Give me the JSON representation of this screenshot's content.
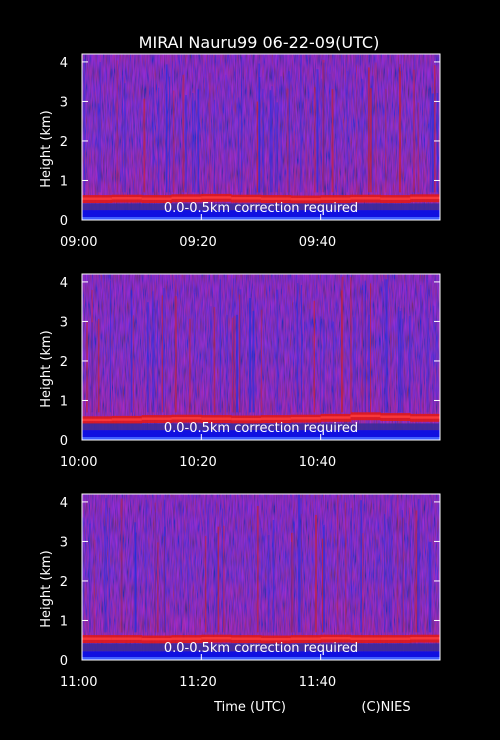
{
  "title": "MIRAI Nauru99 06-22-09(UTC)",
  "xlabel": "Time (UTC)",
  "credit": "(C)NIES",
  "ylabel": "Height (km)",
  "note": "0.0-0.5km correction required",
  "colors": {
    "background": "#000000",
    "low": "#1a1acc",
    "mid": "#7a1a9a",
    "high": "#e01818",
    "peak": "#ffd0d0"
  },
  "chart_data": [
    {
      "type": "heatmap",
      "ylabel": "Height (km)",
      "ylim": [
        0,
        4.2
      ],
      "yticks": [
        0,
        1,
        2,
        3,
        4
      ],
      "xlim": [
        "09:00",
        "10:00"
      ],
      "xticks": [
        "09:00",
        "09:20",
        "09:40"
      ],
      "annotation": "0.0-0.5km correction required",
      "boundary_layer_height_km": [
        0.55,
        0.56,
        0.55,
        0.57,
        0.58,
        0.56,
        0.55,
        0.54,
        0.55,
        0.56,
        0.55,
        0.57
      ],
      "surface_layer_top_km": 0.25
    },
    {
      "type": "heatmap",
      "ylabel": "Height (km)",
      "ylim": [
        0,
        4.2
      ],
      "yticks": [
        0,
        1,
        2,
        3,
        4
      ],
      "xlim": [
        "10:00",
        "11:00"
      ],
      "xticks": [
        "10:00",
        "10:20",
        "10:40"
      ],
      "annotation": "0.0-0.5km correction required",
      "boundary_layer_height_km": [
        0.52,
        0.53,
        0.55,
        0.56,
        0.55,
        0.54,
        0.55,
        0.56,
        0.58,
        0.62,
        0.6,
        0.58
      ],
      "surface_layer_top_km": 0.25
    },
    {
      "type": "heatmap",
      "ylabel": "Height (km)",
      "ylim": [
        0,
        4.2
      ],
      "yticks": [
        0,
        1,
        2,
        3,
        4
      ],
      "xlim": [
        "11:00",
        "12:00"
      ],
      "xticks": [
        "11:00",
        "11:20",
        "11:40"
      ],
      "annotation": "0.0-0.5km correction required",
      "xlabel": "Time (UTC)",
      "boundary_layer_height_km": [
        0.55,
        0.55,
        0.54,
        0.55,
        0.56,
        0.55,
        0.54,
        0.55,
        0.56,
        0.55,
        0.55,
        0.56
      ],
      "surface_layer_top_km": 0.22
    }
  ]
}
